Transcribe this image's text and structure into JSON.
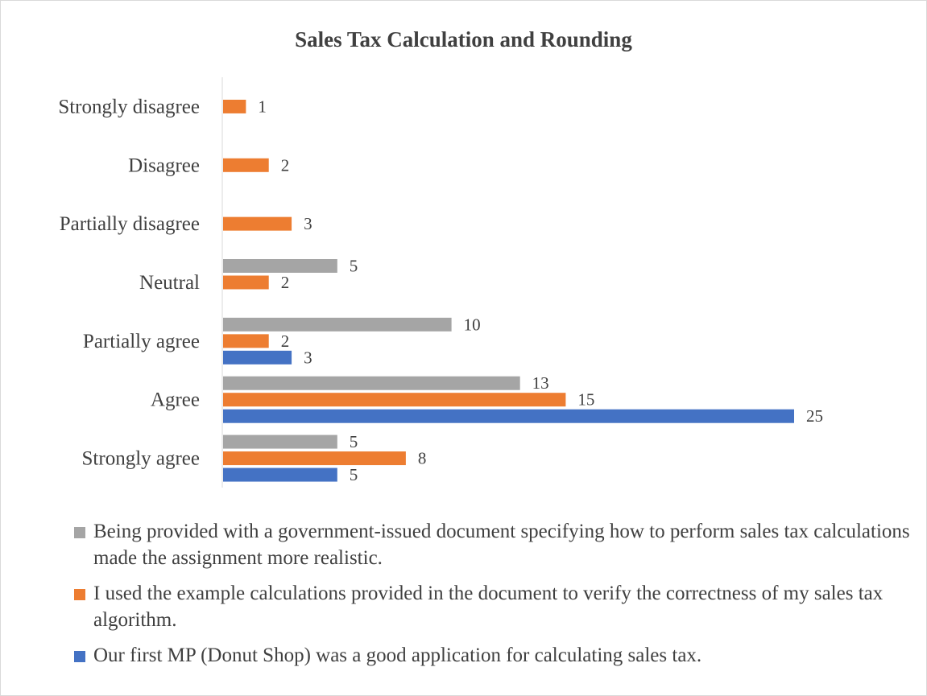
{
  "chart_data": {
    "type": "bar",
    "orientation": "horizontal",
    "title": "Sales Tax Calculation and Rounding",
    "categories": [
      "Strongly disagree",
      "Disagree",
      "Partially disagree",
      "Neutral",
      "Partially agree",
      "Agree",
      "Strongly agree"
    ],
    "series": [
      {
        "name": "Being provided with a government-issued document specifying how to perform sales tax calculations made the assignment more realistic.",
        "color": "#a5a5a5",
        "values": [
          null,
          null,
          null,
          5,
          10,
          13,
          5
        ]
      },
      {
        "name": "I used the example calculations provided in the document to verify the correctness of my sales tax algorithm.",
        "color": "#ed7d31",
        "values": [
          1,
          2,
          3,
          2,
          2,
          15,
          8
        ]
      },
      {
        "name": "Our first MP (Donut Shop) was a good application for calculating sales tax.",
        "color": "#4472c4",
        "values": [
          null,
          null,
          null,
          null,
          3,
          25,
          5
        ]
      }
    ],
    "xlim": [
      0,
      25
    ],
    "grid": false,
    "legend_position": "bottom",
    "data_labels": true
  }
}
